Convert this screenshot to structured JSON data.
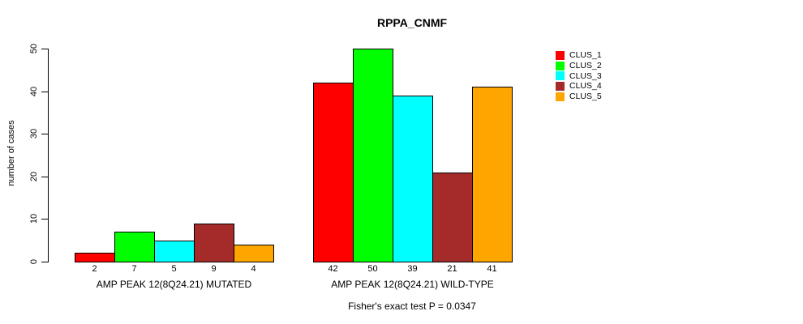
{
  "chart_data": {
    "type": "bar",
    "title": "RPPA_CNMF",
    "ylabel": "number of cases",
    "ylim": [
      0,
      50
    ],
    "yticks": [
      0,
      10,
      20,
      30,
      40,
      50
    ],
    "grid": false,
    "legend_position": "right",
    "annotation": "Fisher's exact test P = 0.0347",
    "categories": [
      "AMP PEAK 12(8Q24.21) MUTATED",
      "AMP PEAK 12(8Q24.21) WILD-TYPE"
    ],
    "series": [
      {
        "name": "CLUS_1",
        "color": "#FF0000",
        "values": [
          2,
          42
        ]
      },
      {
        "name": "CLUS_2",
        "color": "#00FF00",
        "values": [
          7,
          50
        ]
      },
      {
        "name": "CLUS_3",
        "color": "#00FFFF",
        "values": [
          5,
          39
        ]
      },
      {
        "name": "CLUS_4",
        "color": "#A52A2A",
        "values": [
          9,
          21
        ]
      },
      {
        "name": "CLUS_5",
        "color": "#FFA500",
        "values": [
          4,
          41
        ]
      }
    ],
    "bar_value_labels": [
      [
        2,
        7,
        5,
        9,
        4
      ],
      [
        42,
        50,
        39,
        21,
        41
      ]
    ],
    "axis_color": "#000000",
    "bar_border_color": "#000000"
  }
}
